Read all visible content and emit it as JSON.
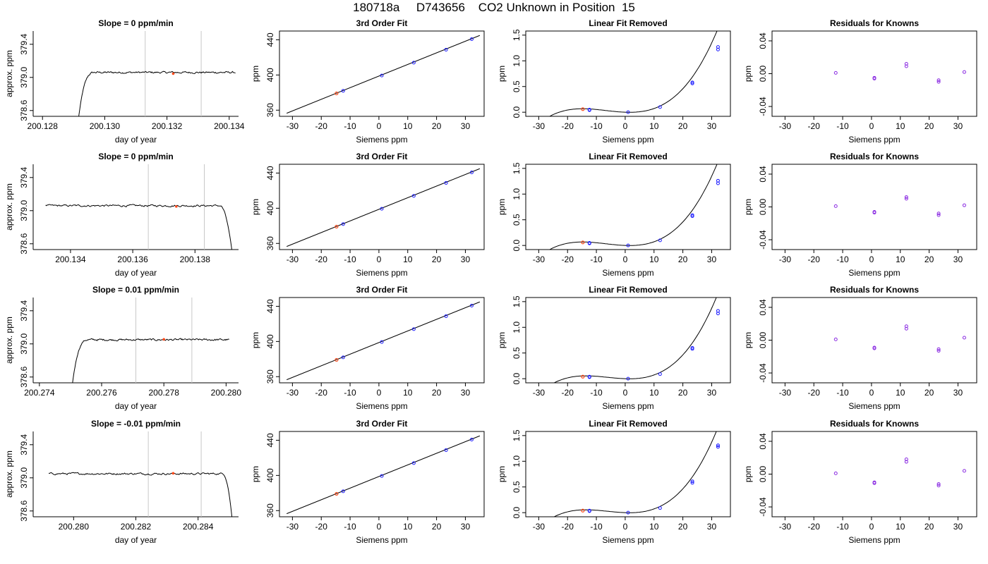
{
  "page_title": "180718a     D743656    CO2 Unknown in Position  15",
  "colors": {
    "trace": "#000000",
    "vline": "#c8c8c8",
    "known_point": "#1a1aff",
    "unknown_point": "#ff4a1a",
    "residual_point": "#8a2be2"
  },
  "chart_data": [
    {
      "type": "line",
      "panel": "time-series",
      "row": 1,
      "title": "Slope =  0  ppm/min",
      "xlabel": "day of year",
      "ylabel": "approx. ppm",
      "xlim": [
        200.1277,
        200.1343
      ],
      "ylim": [
        378.53,
        379.56
      ],
      "xticks": [
        200.128,
        200.13,
        200.132,
        200.134
      ],
      "xtick_labels": [
        "200.128",
        "200.130",
        "200.132",
        "200.134"
      ],
      "yticks": [
        378.6,
        379.0,
        379.4
      ],
      "ytick_labels": [
        "378.6",
        "379.0",
        "379.4"
      ],
      "vlines": [
        200.1313,
        200.1331
      ],
      "marker": [
        200.1322,
        379.045
      ],
      "level": 379.06,
      "rise_start": 200.12915,
      "rise_end": 200.1297,
      "fall_start": null,
      "fall_end": null,
      "trace_start": 200.12915,
      "trace_end": 200.1342
    },
    {
      "type": "line",
      "panel": "time-series",
      "row": 2,
      "title": "Slope =  0  ppm/min",
      "xlabel": "day of year",
      "ylabel": "approx. ppm",
      "xlim": [
        200.1328,
        200.1394
      ],
      "ylim": [
        378.53,
        379.56
      ],
      "xticks": [
        200.134,
        200.136,
        200.138
      ],
      "xtick_labels": [
        "200.134",
        "200.136",
        "200.138"
      ],
      "yticks": [
        378.6,
        379.0,
        379.4
      ],
      "ytick_labels": [
        "378.6",
        "379.0",
        "379.4"
      ],
      "vlines": [
        200.1365,
        200.1383
      ],
      "marker": [
        200.1374,
        379.05
      ],
      "level": 379.06,
      "rise_start": null,
      "rise_end": null,
      "fall_start": 200.1388,
      "fall_end": 200.1392,
      "trace_start": 200.1332,
      "trace_end": 200.1392
    },
    {
      "type": "line",
      "panel": "time-series",
      "row": 3,
      "title": "Slope =  0.01  ppm/min",
      "xlabel": "day of year",
      "ylabel": "approx. ppm",
      "xlim": [
        200.2738,
        200.2804
      ],
      "ylim": [
        378.53,
        379.56
      ],
      "xticks": [
        200.274,
        200.276,
        200.278,
        200.28
      ],
      "xtick_labels": [
        "200.274",
        "200.276",
        "200.278",
        "200.280"
      ],
      "yticks": [
        378.6,
        379.0,
        379.4
      ],
      "ytick_labels": [
        "378.6",
        "379.0",
        "379.4"
      ],
      "vlines": [
        200.2771,
        200.2789
      ],
      "marker": [
        200.278,
        379.055
      ],
      "level": 379.05,
      "rise_start": 200.27505,
      "rise_end": 200.2756,
      "fall_start": null,
      "fall_end": null,
      "trace_start": 200.27505,
      "trace_end": 200.2801
    },
    {
      "type": "line",
      "panel": "time-series",
      "row": 4,
      "title": "Slope =  -0.01  ppm/min",
      "xlabel": "day of year",
      "ylabel": "approx. ppm",
      "xlim": [
        200.2787,
        200.2853
      ],
      "ylim": [
        378.53,
        379.56
      ],
      "xticks": [
        200.28,
        200.282,
        200.284
      ],
      "xtick_labels": [
        "200.280",
        "200.282",
        "200.284"
      ],
      "yticks": [
        378.6,
        379.0,
        379.4
      ],
      "ytick_labels": [
        "378.6",
        "379.0",
        "379.4"
      ],
      "vlines": [
        200.2824,
        200.2841
      ],
      "marker": [
        200.2832,
        379.055
      ],
      "level": 379.05,
      "rise_start": null,
      "rise_end": null,
      "fall_start": 200.2848,
      "fall_end": 200.2851,
      "trace_start": 200.2792,
      "trace_end": 200.2851
    },
    {
      "type": "scatter",
      "panel": "fit",
      "row": 1,
      "title": "3rd Order Fit",
      "xlabel": "Siemens ppm",
      "ylabel": "ppm",
      "xlim": [
        -34.5,
        36.5
      ],
      "ylim": [
        353,
        450
      ],
      "xticks": [
        -30,
        -20,
        -10,
        0,
        10,
        20,
        30
      ],
      "xtick_labels": [
        "-30",
        "-20",
        "-10",
        "0",
        "10",
        "20",
        "30"
      ],
      "yticks": [
        360,
        400,
        440
      ],
      "ytick_labels": [
        "360",
        "400",
        "440"
      ],
      "line": {
        "x": [
          -32,
          35
        ],
        "y": [
          356.5,
          445
        ]
      },
      "known": {
        "x": [
          -12.4,
          1.0,
          12.1,
          23.3,
          32.2
        ],
        "y": [
          382.0,
          399.4,
          414.0,
          428.8,
          440.8
        ]
      },
      "unknown": {
        "x": [
          -14.7
        ],
        "y": [
          379.1
        ]
      }
    },
    {
      "type": "scatter",
      "panel": "fit",
      "row": 2,
      "title": "3rd Order Fit",
      "xlabel": "Siemens ppm",
      "ylabel": "ppm",
      "xlim": [
        -34.5,
        36.5
      ],
      "ylim": [
        353,
        450
      ],
      "xticks": [
        -30,
        -20,
        -10,
        0,
        10,
        20,
        30
      ],
      "xtick_labels": [
        "-30",
        "-20",
        "-10",
        "0",
        "10",
        "20",
        "30"
      ],
      "yticks": [
        360,
        400,
        440
      ],
      "ytick_labels": [
        "360",
        "400",
        "440"
      ],
      "line": {
        "x": [
          -32,
          35
        ],
        "y": [
          356.5,
          445
        ]
      },
      "known": {
        "x": [
          -12.4,
          1.0,
          12.1,
          23.3,
          32.2
        ],
        "y": [
          382.0,
          399.4,
          414.0,
          428.8,
          440.8
        ]
      },
      "unknown": {
        "x": [
          -14.7
        ],
        "y": [
          379.1
        ]
      }
    },
    {
      "type": "scatter",
      "panel": "fit",
      "row": 3,
      "title": "3rd Order Fit",
      "xlabel": "Siemens ppm",
      "ylabel": "ppm",
      "xlim": [
        -34.5,
        36.5
      ],
      "ylim": [
        353,
        450
      ],
      "xticks": [
        -30,
        -20,
        -10,
        0,
        10,
        20,
        30
      ],
      "xtick_labels": [
        "-30",
        "-20",
        "-10",
        "0",
        "10",
        "20",
        "30"
      ],
      "yticks": [
        360,
        400,
        440
      ],
      "ytick_labels": [
        "360",
        "400",
        "440"
      ],
      "line": {
        "x": [
          -32,
          35
        ],
        "y": [
          356.5,
          445
        ]
      },
      "known": {
        "x": [
          -12.4,
          1.0,
          12.1,
          23.3,
          32.2
        ],
        "y": [
          382.0,
          399.4,
          414.0,
          428.8,
          440.8
        ]
      },
      "unknown": {
        "x": [
          -14.7
        ],
        "y": [
          379.1
        ]
      }
    },
    {
      "type": "scatter",
      "panel": "fit",
      "row": 4,
      "title": "3rd Order Fit",
      "xlabel": "Siemens ppm",
      "ylabel": "ppm",
      "xlim": [
        -34.5,
        36.5
      ],
      "ylim": [
        353,
        450
      ],
      "xticks": [
        -30,
        -20,
        -10,
        0,
        10,
        20,
        30
      ],
      "xtick_labels": [
        "-30",
        "-20",
        "-10",
        "0",
        "10",
        "20",
        "30"
      ],
      "yticks": [
        360,
        400,
        440
      ],
      "ytick_labels": [
        "360",
        "400",
        "440"
      ],
      "line": {
        "x": [
          -32,
          35
        ],
        "y": [
          356.5,
          445
        ]
      },
      "known": {
        "x": [
          -12.4,
          1.0,
          12.1,
          23.3,
          32.2
        ],
        "y": [
          382.0,
          399.4,
          414.0,
          428.8,
          440.8
        ]
      },
      "unknown": {
        "x": [
          -14.7
        ],
        "y": [
          379.1
        ]
      }
    },
    {
      "type": "scatter",
      "panel": "linear-removed",
      "row": 1,
      "title": "Linear Fit Removed",
      "xlabel": "Siemens ppm",
      "ylabel": "ppm",
      "xlim": [
        -34.5,
        36.5
      ],
      "ylim": [
        -0.08,
        1.58
      ],
      "xticks": [
        -30,
        -20,
        -10,
        0,
        10,
        20,
        30
      ],
      "xtick_labels": [
        "-30",
        "-20",
        "-10",
        "0",
        "10",
        "20",
        "30"
      ],
      "yticks": [
        0.0,
        0.5,
        1.0,
        1.5
      ],
      "ytick_labels": [
        "0.0",
        "0.5",
        "1.0",
        "1.5"
      ],
      "curve": {
        "x_range": [
          -32,
          35
        ],
        "coeffs": [
          0.0,
          -0.0022,
          0.000625,
          3.15e-05
        ]
      },
      "known": {
        "x": [
          -12.4,
          -12.4,
          1.0,
          12.1,
          23.3,
          23.3,
          32.2,
          32.2
        ],
        "y": [
          0.04,
          0.05,
          0.0,
          0.1,
          0.56,
          0.58,
          1.22,
          1.27
        ]
      },
      "unknown": {
        "x": [
          -14.7
        ],
        "y": [
          0.06
        ]
      }
    },
    {
      "type": "scatter",
      "panel": "linear-removed",
      "row": 2,
      "title": "Linear Fit Removed",
      "xlabel": "Siemens ppm",
      "ylabel": "ppm",
      "xlim": [
        -34.5,
        36.5
      ],
      "ylim": [
        -0.08,
        1.58
      ],
      "xticks": [
        -30,
        -20,
        -10,
        0,
        10,
        20,
        30
      ],
      "xtick_labels": [
        "-30",
        "-20",
        "-10",
        "0",
        "10",
        "20",
        "30"
      ],
      "yticks": [
        0.0,
        0.5,
        1.0,
        1.5
      ],
      "ytick_labels": [
        "0.0",
        "0.5",
        "1.0",
        "1.5"
      ],
      "curve": {
        "x_range": [
          -32,
          35
        ],
        "coeffs": [
          0.0,
          -0.0022,
          0.000625,
          3.15e-05
        ]
      },
      "known": {
        "x": [
          -12.4,
          -12.4,
          1.0,
          12.1,
          23.3,
          23.3,
          32.2,
          32.2
        ],
        "y": [
          0.04,
          0.05,
          0.0,
          0.1,
          0.57,
          0.59,
          1.21,
          1.26
        ]
      },
      "unknown": {
        "x": [
          -14.7
        ],
        "y": [
          0.06
        ]
      }
    },
    {
      "type": "scatter",
      "panel": "linear-removed",
      "row": 3,
      "title": "Linear Fit Removed",
      "xlabel": "Siemens ppm",
      "ylabel": "ppm",
      "xlim": [
        -34.5,
        36.5
      ],
      "ylim": [
        -0.08,
        1.58
      ],
      "xticks": [
        -30,
        -20,
        -10,
        0,
        10,
        20,
        30
      ],
      "xtick_labels": [
        "-30",
        "-20",
        "-10",
        "0",
        "10",
        "20",
        "30"
      ],
      "yticks": [
        0.0,
        0.5,
        1.0,
        1.5
      ],
      "ytick_labels": [
        "0.0",
        "0.5",
        "1.0",
        "1.5"
      ],
      "curve": {
        "x_range": [
          -32,
          35
        ],
        "coeffs": [
          0.0,
          -0.002,
          0.0006,
          3.3e-05
        ]
      },
      "known": {
        "x": [
          -12.4,
          -12.4,
          1.0,
          12.1,
          23.3,
          23.3,
          32.2,
          32.2
        ],
        "y": [
          0.03,
          0.04,
          0.0,
          0.09,
          0.58,
          0.6,
          1.27,
          1.32
        ]
      },
      "unknown": {
        "x": [
          -14.7
        ],
        "y": [
          0.04
        ]
      }
    },
    {
      "type": "scatter",
      "panel": "linear-removed",
      "row": 4,
      "title": "Linear Fit Removed",
      "xlabel": "Siemens ppm",
      "ylabel": "ppm",
      "xlim": [
        -34.5,
        36.5
      ],
      "ylim": [
        -0.08,
        1.58
      ],
      "xticks": [
        -30,
        -20,
        -10,
        0,
        10,
        20,
        30
      ],
      "xtick_labels": [
        "-30",
        "-20",
        "-10",
        "0",
        "10",
        "20",
        "30"
      ],
      "yticks": [
        0.0,
        0.5,
        1.0,
        1.5
      ],
      "ytick_labels": [
        "0.0",
        "0.5",
        "1.0",
        "1.5"
      ],
      "curve": {
        "x_range": [
          -32,
          35
        ],
        "coeffs": [
          0.0,
          -0.002,
          0.0006,
          3.3e-05
        ]
      },
      "known": {
        "x": [
          -12.4,
          -12.4,
          1.0,
          12.1,
          23.3,
          23.3,
          32.2,
          32.2
        ],
        "y": [
          0.03,
          0.04,
          0.0,
          0.09,
          0.58,
          0.61,
          1.28,
          1.31
        ]
      },
      "unknown": {
        "x": [
          -14.7
        ],
        "y": [
          0.04
        ]
      }
    },
    {
      "type": "scatter",
      "panel": "residuals",
      "row": 1,
      "title": "Residuals for Knowns",
      "xlabel": "Siemens ppm",
      "ylabel": "ppm",
      "xlim": [
        -34.5,
        36.5
      ],
      "ylim": [
        -0.052,
        0.052
      ],
      "xticks": [
        -30,
        -20,
        -10,
        0,
        10,
        20,
        30
      ],
      "xtick_labels": [
        "-30",
        "-20",
        "-10",
        "0",
        "10",
        "20",
        "30"
      ],
      "yticks": [
        -0.04,
        0.0,
        0.04
      ],
      "ytick_labels": [
        "-0.04",
        "0.00",
        "0.04"
      ],
      "points": {
        "x": [
          -12.4,
          1.0,
          1.0,
          12.1,
          12.1,
          23.3,
          23.3,
          32.2
        ],
        "y": [
          0.001,
          -0.006,
          -0.005,
          0.012,
          0.009,
          -0.008,
          -0.01,
          0.002
        ]
      }
    },
    {
      "type": "scatter",
      "panel": "residuals",
      "row": 2,
      "title": "Residuals for Knowns",
      "xlabel": "Siemens ppm",
      "ylabel": "ppm",
      "xlim": [
        -34.5,
        36.5
      ],
      "ylim": [
        -0.052,
        0.052
      ],
      "xticks": [
        -30,
        -20,
        -10,
        0,
        10,
        20,
        30
      ],
      "xtick_labels": [
        "-30",
        "-20",
        "-10",
        "0",
        "10",
        "20",
        "30"
      ],
      "yticks": [
        -0.04,
        0.0,
        0.04
      ],
      "ytick_labels": [
        "-0.04",
        "0.00",
        "0.04"
      ],
      "points": {
        "x": [
          -12.4,
          1.0,
          1.0,
          12.1,
          12.1,
          23.3,
          23.3,
          32.2
        ],
        "y": [
          0.001,
          -0.006,
          -0.007,
          0.012,
          0.01,
          -0.008,
          -0.01,
          0.002
        ]
      }
    },
    {
      "type": "scatter",
      "panel": "residuals",
      "row": 3,
      "title": "Residuals for Knowns",
      "xlabel": "Siemens ppm",
      "ylabel": "ppm",
      "xlim": [
        -34.5,
        36.5
      ],
      "ylim": [
        -0.052,
        0.052
      ],
      "xticks": [
        -30,
        -20,
        -10,
        0,
        10,
        20,
        30
      ],
      "xtick_labels": [
        "-30",
        "-20",
        "-10",
        "0",
        "10",
        "20",
        "30"
      ],
      "yticks": [
        -0.04,
        0.0,
        0.04
      ],
      "ytick_labels": [
        "-0.04",
        "0.00",
        "0.04"
      ],
      "points": {
        "x": [
          -12.4,
          1.0,
          1.0,
          12.1,
          12.1,
          23.3,
          23.3,
          32.2
        ],
        "y": [
          0.001,
          -0.009,
          -0.01,
          0.017,
          0.014,
          -0.011,
          -0.013,
          0.003
        ]
      }
    },
    {
      "type": "scatter",
      "panel": "residuals",
      "row": 4,
      "title": "Residuals for Knowns",
      "xlabel": "Siemens ppm",
      "ylabel": "ppm",
      "xlim": [
        -34.5,
        36.5
      ],
      "ylim": [
        -0.052,
        0.052
      ],
      "xticks": [
        -30,
        -20,
        -10,
        0,
        10,
        20,
        30
      ],
      "xtick_labels": [
        "-30",
        "-20",
        "-10",
        "0",
        "10",
        "20",
        "30"
      ],
      "yticks": [
        -0.04,
        0.0,
        0.04
      ],
      "ytick_labels": [
        "-0.04",
        "0.00",
        "0.04"
      ],
      "points": {
        "x": [
          -12.4,
          1.0,
          1.0,
          12.1,
          12.1,
          23.3,
          23.3,
          32.2
        ],
        "y": [
          0.001,
          -0.01,
          -0.011,
          0.018,
          0.015,
          -0.012,
          -0.014,
          0.004
        ]
      }
    }
  ]
}
